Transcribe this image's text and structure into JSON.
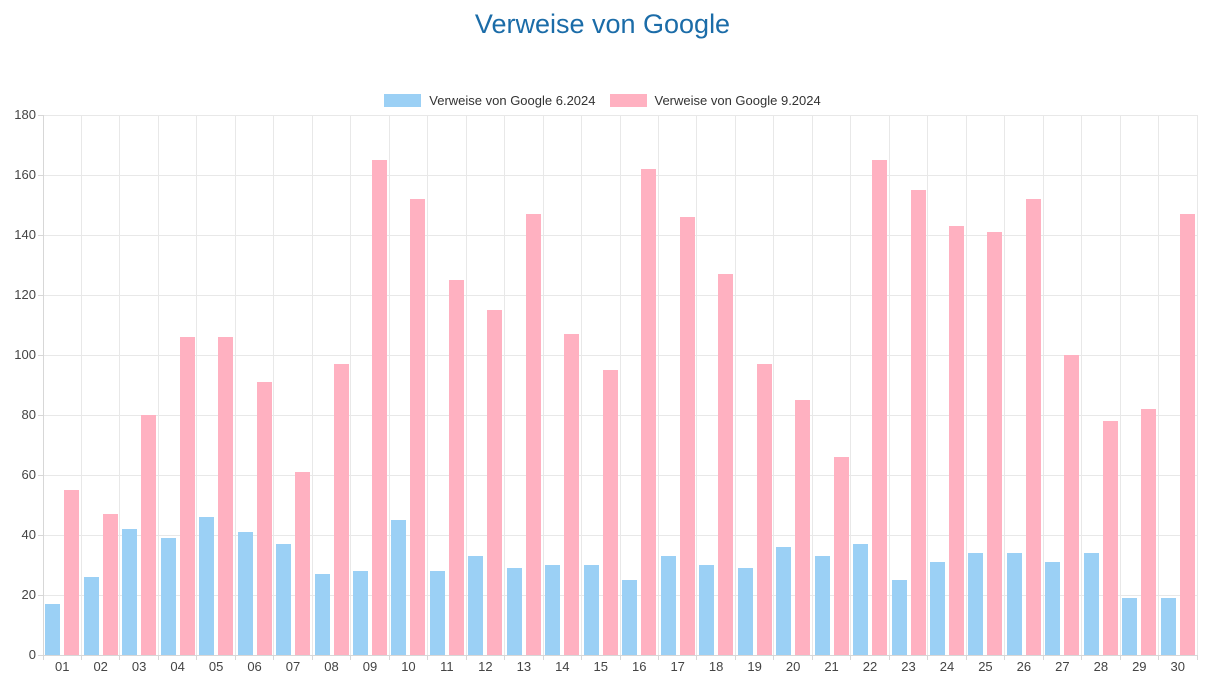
{
  "title": "Verweise von Google",
  "colors": {
    "title": "#1b6ca8",
    "series1": "#9BD0F5",
    "series2": "#FFB1C1",
    "grid": "#e8e8e8",
    "axis": "#d7d7d7",
    "tick_text": "#444444",
    "legend_text": "#333333",
    "background": "#ffffff"
  },
  "chart_data": {
    "type": "bar",
    "title": "Verweise von Google",
    "xlabel": "",
    "ylabel": "",
    "ylim": [
      0,
      180
    ],
    "yticks": [
      0,
      20,
      40,
      60,
      80,
      100,
      120,
      140,
      160,
      180
    ],
    "grid": true,
    "legend_position": "top",
    "categories": [
      "01",
      "02",
      "03",
      "04",
      "05",
      "06",
      "07",
      "08",
      "09",
      "10",
      "11",
      "12",
      "13",
      "14",
      "15",
      "16",
      "17",
      "18",
      "19",
      "20",
      "21",
      "22",
      "23",
      "24",
      "25",
      "26",
      "27",
      "28",
      "29",
      "30"
    ],
    "series": [
      {
        "name": "Verweise von Google 6.2024",
        "color": "#9BD0F5",
        "values": [
          17,
          26,
          42,
          39,
          46,
          41,
          37,
          27,
          28,
          45,
          28,
          33,
          29,
          30,
          30,
          25,
          33,
          30,
          29,
          36,
          33,
          37,
          25,
          31,
          34,
          34,
          31,
          34,
          19,
          19
        ]
      },
      {
        "name": "Verweise von Google 9.2024",
        "color": "#FFB1C1",
        "values": [
          55,
          47,
          80,
          106,
          106,
          91,
          61,
          97,
          165,
          152,
          125,
          115,
          147,
          107,
          95,
          162,
          146,
          127,
          97,
          85,
          66,
          165,
          155,
          143,
          141,
          152,
          100,
          78,
          82,
          147
        ]
      }
    ]
  }
}
